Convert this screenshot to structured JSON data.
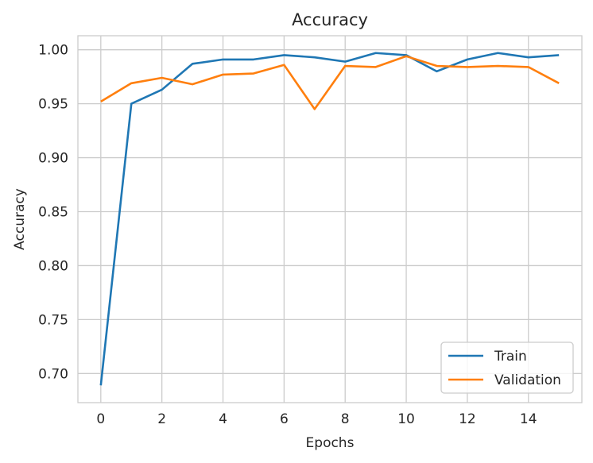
{
  "chart_data": {
    "type": "line",
    "title": "Accuracy",
    "xlabel": "Epochs",
    "ylabel": "Accuracy",
    "x": [
      0,
      1,
      2,
      3,
      4,
      5,
      6,
      7,
      8,
      9,
      10,
      11,
      12,
      13,
      14,
      15
    ],
    "xlim": [
      -0.75,
      15.75
    ],
    "ylim": [
      0.673,
      1.013
    ],
    "xticks": [
      0,
      2,
      4,
      6,
      8,
      10,
      12,
      14
    ],
    "yticks": [
      0.7,
      0.75,
      0.8,
      0.85,
      0.9,
      0.95,
      1.0
    ],
    "ytick_labels": [
      "0.70",
      "0.75",
      "0.80",
      "0.85",
      "0.90",
      "0.95",
      "1.00"
    ],
    "grid": true,
    "legend_position": "lower-right",
    "series": [
      {
        "name": "Train",
        "color": "#1f77b4",
        "values": [
          0.689,
          0.95,
          0.963,
          0.987,
          0.991,
          0.991,
          0.995,
          0.993,
          0.989,
          0.997,
          0.995,
          0.98,
          0.991,
          0.997,
          0.993,
          0.995
        ]
      },
      {
        "name": "Validation",
        "color": "#ff7f0e",
        "values": [
          0.952,
          0.969,
          0.974,
          0.968,
          0.977,
          0.978,
          0.986,
          0.945,
          0.985,
          0.984,
          0.994,
          0.985,
          0.984,
          0.985,
          0.984,
          0.969
        ]
      }
    ]
  }
}
